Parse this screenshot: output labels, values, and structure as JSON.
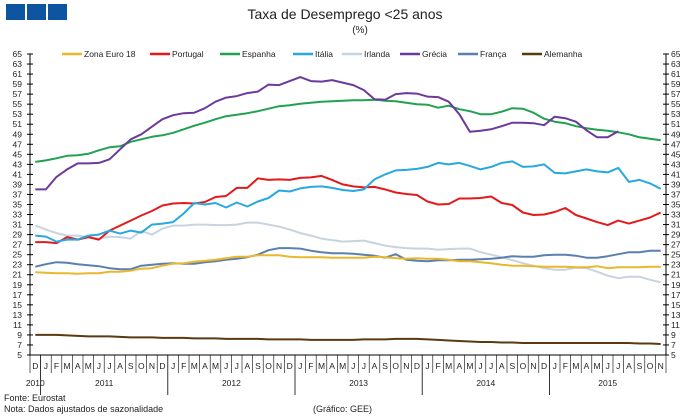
{
  "chart_data": {
    "type": "line",
    "title": "Taxa de Desemprego <25 anos",
    "subtitle": "(%)",
    "ylim": [
      5,
      65
    ],
    "yticks": [
      5,
      7,
      9,
      11,
      13,
      15,
      17,
      19,
      21,
      23,
      25,
      27,
      29,
      31,
      33,
      35,
      37,
      39,
      41,
      43,
      45,
      47,
      49,
      51,
      53,
      55,
      57,
      59,
      61,
      63,
      65
    ],
    "grid": false,
    "legend_position": "top",
    "x_months": [
      "D",
      "J",
      "F",
      "M",
      "A",
      "M",
      "J",
      "J",
      "A",
      "S",
      "O",
      "N",
      "D",
      "J",
      "F",
      "M",
      "A",
      "M",
      "J",
      "J",
      "A",
      "S",
      "O",
      "N",
      "D",
      "J",
      "F",
      "M",
      "A",
      "M",
      "J",
      "J",
      "A",
      "S",
      "O",
      "N",
      "D",
      "J",
      "F",
      "M",
      "A",
      "M",
      "J",
      "J",
      "A",
      "S",
      "O",
      "N",
      "D",
      "J",
      "F",
      "M",
      "A",
      "M",
      "J",
      "J",
      "A",
      "S",
      "O",
      "N"
    ],
    "x_start": "2010-12",
    "x_end": "2015-11",
    "years": [
      "2010",
      "2011",
      "2012",
      "2013",
      "2014",
      "2015"
    ],
    "series": [
      {
        "name": "Zona Euro 18",
        "color": "#e8b82e",
        "values": [
          21.5,
          21.4,
          21.3,
          21.3,
          21.2,
          21.3,
          21.3,
          21.6,
          21.6,
          21.8,
          22.2,
          22.3,
          22.8,
          23.2,
          23.3,
          23.6,
          23.8,
          24.0,
          24.3,
          24.6,
          24.6,
          24.9,
          24.9,
          24.9,
          24.6,
          24.5,
          24.5,
          24.5,
          24.4,
          24.4,
          24.4,
          24.4,
          24.6,
          24.5,
          24.3,
          24.2,
          24.3,
          24.2,
          24.2,
          24.0,
          23.7,
          23.7,
          23.5,
          23.3,
          23.0,
          22.8,
          22.8,
          22.7,
          22.6,
          22.6,
          22.6,
          22.5,
          22.5,
          22.7,
          22.3,
          22.5,
          22.5,
          22.5,
          22.6,
          22.6
        ]
      },
      {
        "name": "Portugal",
        "color": "#e31a1c",
        "values": [
          27.5,
          27.5,
          27.3,
          28.5,
          28.0,
          28.5,
          28.0,
          29.8,
          30.8,
          31.8,
          32.8,
          33.7,
          34.8,
          35.2,
          35.3,
          35.2,
          35.5,
          36.5,
          36.7,
          38.3,
          38.3,
          40.2,
          39.9,
          40.0,
          39.9,
          40.3,
          40.4,
          40.7,
          39.9,
          39.0,
          38.6,
          38.4,
          38.5,
          38.0,
          37.4,
          37.1,
          36.9,
          35.6,
          35.0,
          35.1,
          36.2,
          36.2,
          36.3,
          36.6,
          35.3,
          34.9,
          33.4,
          32.9,
          33.0,
          33.5,
          34.3,
          32.9,
          32.2,
          31.5,
          30.9,
          31.8,
          31.2,
          31.8,
          32.4,
          33.4
        ]
      },
      {
        "name": "Espanha",
        "color": "#22a150",
        "values": [
          43.5,
          43.8,
          44.2,
          44.7,
          44.8,
          45.1,
          45.8,
          46.4,
          46.6,
          47.5,
          48.0,
          48.5,
          48.8,
          49.3,
          50.0,
          50.7,
          51.3,
          52.0,
          52.6,
          52.9,
          53.2,
          53.6,
          54.1,
          54.6,
          54.8,
          55.1,
          55.3,
          55.5,
          55.6,
          55.7,
          55.8,
          55.8,
          55.9,
          55.7,
          55.6,
          55.3,
          55.0,
          54.9,
          54.3,
          54.7,
          54.0,
          53.6,
          53.0,
          53.0,
          53.5,
          54.2,
          54.1,
          53.3,
          52.1,
          51.5,
          51.2,
          50.6,
          50.2,
          49.9,
          49.7,
          49.4,
          49.0,
          48.4,
          48.1,
          47.8
        ]
      },
      {
        "name": "Itália",
        "color": "#29a8e0",
        "values": [
          28.8,
          28.6,
          27.6,
          28.0,
          28.0,
          28.8,
          29.0,
          29.8,
          29.2,
          29.8,
          29.4,
          31.0,
          31.2,
          31.5,
          33.2,
          35.3,
          35.0,
          35.3,
          34.4,
          35.4,
          34.6,
          35.6,
          36.3,
          37.8,
          37.6,
          38.2,
          38.5,
          38.6,
          38.3,
          37.9,
          37.7,
          38.0,
          40.0,
          41.0,
          41.8,
          41.9,
          42.1,
          42.5,
          43.3,
          43.0,
          43.3,
          42.7,
          42.0,
          42.5,
          43.3,
          43.6,
          42.5,
          42.6,
          43.0,
          41.3,
          41.2,
          41.6,
          42.0,
          41.6,
          41.4,
          42.3,
          39.5,
          39.9,
          39.2,
          38.1
        ]
      },
      {
        "name": "Irlanda",
        "color": "#c8d3e0",
        "values": [
          30.8,
          30.0,
          29.3,
          28.8,
          28.8,
          28.5,
          28.2,
          28.6,
          28.5,
          28.2,
          29.7,
          29.0,
          30.2,
          30.8,
          30.8,
          31.0,
          31.0,
          30.9,
          30.9,
          31.0,
          31.4,
          31.4,
          31.0,
          30.6,
          30.0,
          29.3,
          28.8,
          28.2,
          27.9,
          27.6,
          27.7,
          27.8,
          27.3,
          26.8,
          26.5,
          26.3,
          26.2,
          26.2,
          26.0,
          26.1,
          26.2,
          26.2,
          25.5,
          25.0,
          24.5,
          23.9,
          23.3,
          22.8,
          22.3,
          22.0,
          22.0,
          22.4,
          22.3,
          21.6,
          20.8,
          20.3,
          20.6,
          20.6,
          20.0,
          19.5
        ]
      },
      {
        "name": "Grécia",
        "color": "#6b3a9a",
        "values": [
          38,
          38,
          40.5,
          42,
          43.2,
          43.2,
          43.3,
          44,
          46,
          48,
          49,
          50.5,
          52,
          52.8,
          53.2,
          53.3,
          54.2,
          55.5,
          56.3,
          56.6,
          57.2,
          57.5,
          58.9,
          58.8,
          59.6,
          60.4,
          59.6,
          59.5,
          59.8,
          59.3,
          58.8,
          57.8,
          56,
          55.9,
          57,
          57.2,
          57.1,
          56.5,
          56.4,
          55.5,
          53,
          49.5,
          49.7,
          50,
          50.6,
          51.3,
          51.3,
          51.2,
          50.8,
          52.5,
          52.2,
          51.5,
          49.8,
          48.4,
          48.4,
          49.6,
          null,
          null,
          null,
          null
        ]
      },
      {
        "name": "França",
        "color": "#5b7fae",
        "values": [
          22.6,
          23.1,
          23.5,
          23.4,
          23.1,
          22.9,
          22.7,
          22.3,
          22.1,
          22.1,
          22.8,
          23.0,
          23.2,
          23.3,
          23.2,
          23.2,
          23.5,
          23.7,
          24.0,
          24.2,
          24.5,
          25.0,
          25.9,
          26.3,
          26.3,
          26.2,
          25.8,
          25.5,
          25.3,
          25.3,
          25.2,
          25.0,
          24.8,
          24.4,
          25.1,
          24.0,
          23.8,
          23.7,
          23.9,
          23.9,
          24.0,
          24.0,
          24.1,
          24.2,
          24.4,
          24.7,
          24.6,
          24.6,
          24.9,
          25.0,
          25.0,
          24.8,
          24.4,
          24.4,
          24.7,
          25.1,
          25.5,
          25.5,
          25.8,
          25.8
        ]
      },
      {
        "name": "Alemanha",
        "color": "#5a3a12",
        "values": [
          9.0,
          9.0,
          9.0,
          8.9,
          8.8,
          8.7,
          8.7,
          8.7,
          8.6,
          8.5,
          8.5,
          8.5,
          8.4,
          8.4,
          8.4,
          8.3,
          8.3,
          8.3,
          8.2,
          8.2,
          8.2,
          8.2,
          8.1,
          8.1,
          8.1,
          8.1,
          8.0,
          8.0,
          8.0,
          8.0,
          8.0,
          8.1,
          8.1,
          8.1,
          8.2,
          8.2,
          8.2,
          8.1,
          8.0,
          7.9,
          7.8,
          7.7,
          7.6,
          7.6,
          7.5,
          7.5,
          7.4,
          7.4,
          7.4,
          7.4,
          7.4,
          7.4,
          7.4,
          7.4,
          7.4,
          7.4,
          7.4,
          7.3,
          7.3,
          7.2
        ]
      }
    ]
  },
  "footer": {
    "source": "Fonte: Eurostat",
    "note": "Nota: Dados ajustados de sazonalidade",
    "credit": "(Gráfico: GEE)"
  },
  "logo_color": "#0d55a0"
}
